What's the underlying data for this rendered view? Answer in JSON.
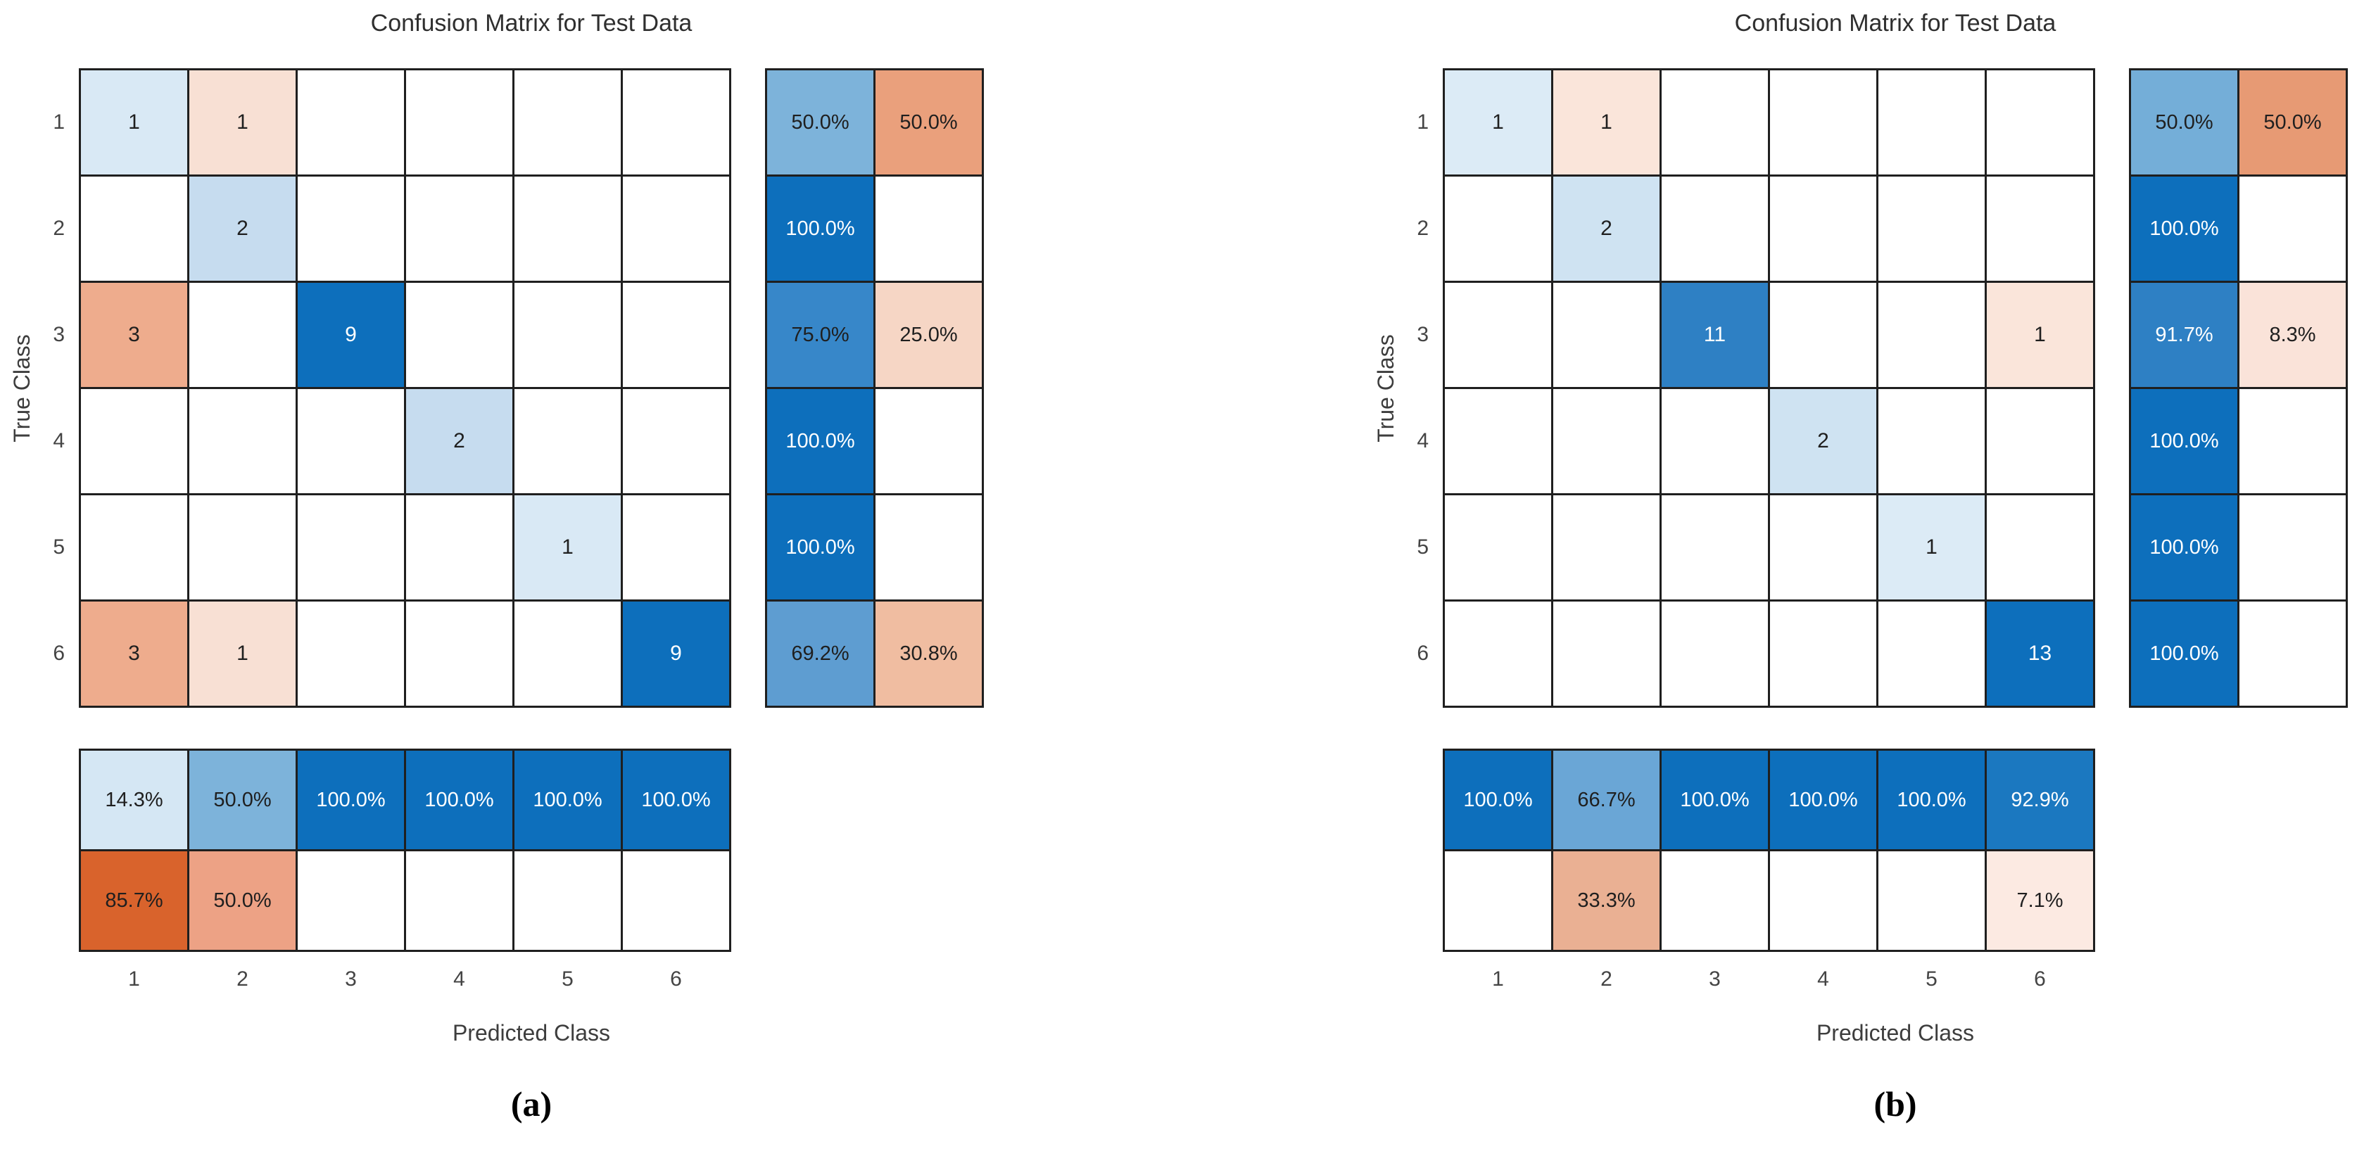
{
  "figure": {
    "background": "#ffffff",
    "grid_line_color": "#1f1f1f"
  },
  "palette": {
    "diag_dark_blue": "#0d6fbc",
    "diag_medium_blue": "#2e80c4",
    "offdiag_strong_orange": "#d9632c",
    "offdiag_salmon": "#eaa07c",
    "blank_cell": "#ffffff"
  },
  "charts": [
    {
      "id": "a",
      "caption": "(a)",
      "title": "Confusion Matrix for Test Data",
      "xlabel": "Predicted Class",
      "ylabel": "True Class",
      "x_ticks": [
        "1",
        "2",
        "3",
        "4",
        "5",
        "6"
      ],
      "y_ticks": [
        "1",
        "2",
        "3",
        "4",
        "5",
        "6"
      ],
      "cells": [
        [
          {
            "v": "1",
            "bg": "#d9e9f5",
            "fg": "#1f1f1f"
          },
          {
            "v": "1",
            "bg": "#f8e0d4",
            "fg": "#1f1f1f"
          },
          {
            "v": "",
            "bg": "#ffffff",
            "fg": "#1f1f1f"
          },
          {
            "v": "",
            "bg": "#ffffff",
            "fg": "#1f1f1f"
          },
          {
            "v": "",
            "bg": "#ffffff",
            "fg": "#1f1f1f"
          },
          {
            "v": "",
            "bg": "#ffffff",
            "fg": "#1f1f1f"
          }
        ],
        [
          {
            "v": "",
            "bg": "#ffffff",
            "fg": "#1f1f1f"
          },
          {
            "v": "2",
            "bg": "#c6dcef",
            "fg": "#1f1f1f"
          },
          {
            "v": "",
            "bg": "#ffffff",
            "fg": "#1f1f1f"
          },
          {
            "v": "",
            "bg": "#ffffff",
            "fg": "#1f1f1f"
          },
          {
            "v": "",
            "bg": "#ffffff",
            "fg": "#1f1f1f"
          },
          {
            "v": "",
            "bg": "#ffffff",
            "fg": "#1f1f1f"
          }
        ],
        [
          {
            "v": "3",
            "bg": "#eeac8d",
            "fg": "#1f1f1f"
          },
          {
            "v": "",
            "bg": "#ffffff",
            "fg": "#1f1f1f"
          },
          {
            "v": "9",
            "bg": "#0d6fbc",
            "fg": "#ffffff"
          },
          {
            "v": "",
            "bg": "#ffffff",
            "fg": "#1f1f1f"
          },
          {
            "v": "",
            "bg": "#ffffff",
            "fg": "#1f1f1f"
          },
          {
            "v": "",
            "bg": "#ffffff",
            "fg": "#1f1f1f"
          }
        ],
        [
          {
            "v": "",
            "bg": "#ffffff",
            "fg": "#1f1f1f"
          },
          {
            "v": "",
            "bg": "#ffffff",
            "fg": "#1f1f1f"
          },
          {
            "v": "",
            "bg": "#ffffff",
            "fg": "#1f1f1f"
          },
          {
            "v": "2",
            "bg": "#c6dcef",
            "fg": "#1f1f1f"
          },
          {
            "v": "",
            "bg": "#ffffff",
            "fg": "#1f1f1f"
          },
          {
            "v": "",
            "bg": "#ffffff",
            "fg": "#1f1f1f"
          }
        ],
        [
          {
            "v": "",
            "bg": "#ffffff",
            "fg": "#1f1f1f"
          },
          {
            "v": "",
            "bg": "#ffffff",
            "fg": "#1f1f1f"
          },
          {
            "v": "",
            "bg": "#ffffff",
            "fg": "#1f1f1f"
          },
          {
            "v": "",
            "bg": "#ffffff",
            "fg": "#1f1f1f"
          },
          {
            "v": "1",
            "bg": "#d9e9f5",
            "fg": "#1f1f1f"
          },
          {
            "v": "",
            "bg": "#ffffff",
            "fg": "#1f1f1f"
          }
        ],
        [
          {
            "v": "3",
            "bg": "#eeac8d",
            "fg": "#1f1f1f"
          },
          {
            "v": "1",
            "bg": "#f8e0d4",
            "fg": "#1f1f1f"
          },
          {
            "v": "",
            "bg": "#ffffff",
            "fg": "#1f1f1f"
          },
          {
            "v": "",
            "bg": "#ffffff",
            "fg": "#1f1f1f"
          },
          {
            "v": "",
            "bg": "#ffffff",
            "fg": "#1f1f1f"
          },
          {
            "v": "9",
            "bg": "#0d6fbc",
            "fg": "#ffffff"
          }
        ]
      ],
      "row_summary": [
        [
          {
            "v": "50.0%",
            "bg": "#7db3da",
            "fg": "#1f1f1f"
          },
          {
            "v": "50.0%",
            "bg": "#eaa07c",
            "fg": "#1f1f1f"
          }
        ],
        [
          {
            "v": "100.0%",
            "bg": "#0d6fbc",
            "fg": "#ffffff"
          },
          {
            "v": "",
            "bg": "#ffffff",
            "fg": "#1f1f1f"
          }
        ],
        [
          {
            "v": "75.0%",
            "bg": "#3787c9",
            "fg": "#1f1f1f"
          },
          {
            "v": "25.0%",
            "bg": "#f6d6c5",
            "fg": "#1f1f1f"
          }
        ],
        [
          {
            "v": "100.0%",
            "bg": "#0d6fbc",
            "fg": "#ffffff"
          },
          {
            "v": "",
            "bg": "#ffffff",
            "fg": "#1f1f1f"
          }
        ],
        [
          {
            "v": "100.0%",
            "bg": "#0d6fbc",
            "fg": "#ffffff"
          },
          {
            "v": "",
            "bg": "#ffffff",
            "fg": "#1f1f1f"
          }
        ],
        [
          {
            "v": "69.2%",
            "bg": "#5e9dd1",
            "fg": "#1f1f1f"
          },
          {
            "v": "30.8%",
            "bg": "#f0bda1",
            "fg": "#1f1f1f"
          }
        ]
      ],
      "col_summary": [
        [
          {
            "v": "14.3%",
            "bg": "#d5e7f4",
            "fg": "#1f1f1f"
          },
          {
            "v": "50.0%",
            "bg": "#7db3da",
            "fg": "#1f1f1f"
          },
          {
            "v": "100.0%",
            "bg": "#0d6fbc",
            "fg": "#ffffff"
          },
          {
            "v": "100.0%",
            "bg": "#0d6fbc",
            "fg": "#ffffff"
          },
          {
            "v": "100.0%",
            "bg": "#0d6fbc",
            "fg": "#ffffff"
          },
          {
            "v": "100.0%",
            "bg": "#0d6fbc",
            "fg": "#ffffff"
          }
        ],
        [
          {
            "v": "85.7%",
            "bg": "#d9632c",
            "fg": "#1f1f1f"
          },
          {
            "v": "50.0%",
            "bg": "#eda285",
            "fg": "#1f1f1f"
          },
          {
            "v": "",
            "bg": "#ffffff",
            "fg": "#1f1f1f"
          },
          {
            "v": "",
            "bg": "#ffffff",
            "fg": "#1f1f1f"
          },
          {
            "v": "",
            "bg": "#ffffff",
            "fg": "#1f1f1f"
          },
          {
            "v": "",
            "bg": "#ffffff",
            "fg": "#1f1f1f"
          }
        ]
      ]
    },
    {
      "id": "b",
      "caption": "(b)",
      "title": "Confusion Matrix for Test Data",
      "xlabel": "Predicted Class",
      "ylabel": "True Class",
      "x_ticks": [
        "1",
        "2",
        "3",
        "4",
        "5",
        "6"
      ],
      "y_ticks": [
        "1",
        "2",
        "3",
        "4",
        "5",
        "6"
      ],
      "cells": [
        [
          {
            "v": "1",
            "bg": "#dcebf6",
            "fg": "#1f1f1f"
          },
          {
            "v": "1",
            "bg": "#fae5da",
            "fg": "#1f1f1f"
          },
          {
            "v": "",
            "bg": "#ffffff",
            "fg": "#1f1f1f"
          },
          {
            "v": "",
            "bg": "#ffffff",
            "fg": "#1f1f1f"
          },
          {
            "v": "",
            "bg": "#ffffff",
            "fg": "#1f1f1f"
          },
          {
            "v": "",
            "bg": "#ffffff",
            "fg": "#1f1f1f"
          }
        ],
        [
          {
            "v": "",
            "bg": "#ffffff",
            "fg": "#1f1f1f"
          },
          {
            "v": "2",
            "bg": "#cfe3f2",
            "fg": "#1f1f1f"
          },
          {
            "v": "",
            "bg": "#ffffff",
            "fg": "#1f1f1f"
          },
          {
            "v": "",
            "bg": "#ffffff",
            "fg": "#1f1f1f"
          },
          {
            "v": "",
            "bg": "#ffffff",
            "fg": "#1f1f1f"
          },
          {
            "v": "",
            "bg": "#ffffff",
            "fg": "#1f1f1f"
          }
        ],
        [
          {
            "v": "",
            "bg": "#ffffff",
            "fg": "#1f1f1f"
          },
          {
            "v": "",
            "bg": "#ffffff",
            "fg": "#1f1f1f"
          },
          {
            "v": "11",
            "bg": "#2e80c4",
            "fg": "#ffffff"
          },
          {
            "v": "",
            "bg": "#ffffff",
            "fg": "#1f1f1f"
          },
          {
            "v": "",
            "bg": "#ffffff",
            "fg": "#1f1f1f"
          },
          {
            "v": "1",
            "bg": "#fae5da",
            "fg": "#1f1f1f"
          }
        ],
        [
          {
            "v": "",
            "bg": "#ffffff",
            "fg": "#1f1f1f"
          },
          {
            "v": "",
            "bg": "#ffffff",
            "fg": "#1f1f1f"
          },
          {
            "v": "",
            "bg": "#ffffff",
            "fg": "#1f1f1f"
          },
          {
            "v": "2",
            "bg": "#cfe3f2",
            "fg": "#1f1f1f"
          },
          {
            "v": "",
            "bg": "#ffffff",
            "fg": "#1f1f1f"
          },
          {
            "v": "",
            "bg": "#ffffff",
            "fg": "#1f1f1f"
          }
        ],
        [
          {
            "v": "",
            "bg": "#ffffff",
            "fg": "#1f1f1f"
          },
          {
            "v": "",
            "bg": "#ffffff",
            "fg": "#1f1f1f"
          },
          {
            "v": "",
            "bg": "#ffffff",
            "fg": "#1f1f1f"
          },
          {
            "v": "",
            "bg": "#ffffff",
            "fg": "#1f1f1f"
          },
          {
            "v": "1",
            "bg": "#dcebf6",
            "fg": "#1f1f1f"
          },
          {
            "v": "",
            "bg": "#ffffff",
            "fg": "#1f1f1f"
          }
        ],
        [
          {
            "v": "",
            "bg": "#ffffff",
            "fg": "#1f1f1f"
          },
          {
            "v": "",
            "bg": "#ffffff",
            "fg": "#1f1f1f"
          },
          {
            "v": "",
            "bg": "#ffffff",
            "fg": "#1f1f1f"
          },
          {
            "v": "",
            "bg": "#ffffff",
            "fg": "#1f1f1f"
          },
          {
            "v": "",
            "bg": "#ffffff",
            "fg": "#1f1f1f"
          },
          {
            "v": "13",
            "bg": "#0d6fbc",
            "fg": "#ffffff"
          }
        ]
      ],
      "row_summary": [
        [
          {
            "v": "50.0%",
            "bg": "#74aed8",
            "fg": "#1f1f1f"
          },
          {
            "v": "50.0%",
            "bg": "#e79a74",
            "fg": "#1f1f1f"
          }
        ],
        [
          {
            "v": "100.0%",
            "bg": "#0d6fbc",
            "fg": "#ffffff"
          },
          {
            "v": "",
            "bg": "#ffffff",
            "fg": "#1f1f1f"
          }
        ],
        [
          {
            "v": "91.7%",
            "bg": "#2e80c4",
            "fg": "#ffffff"
          },
          {
            "v": "8.3%",
            "bg": "#fae3d9",
            "fg": "#1f1f1f"
          }
        ],
        [
          {
            "v": "100.0%",
            "bg": "#0d6fbc",
            "fg": "#ffffff"
          },
          {
            "v": "",
            "bg": "#ffffff",
            "fg": "#1f1f1f"
          }
        ],
        [
          {
            "v": "100.0%",
            "bg": "#0d6fbc",
            "fg": "#ffffff"
          },
          {
            "v": "",
            "bg": "#ffffff",
            "fg": "#1f1f1f"
          }
        ],
        [
          {
            "v": "100.0%",
            "bg": "#0d6fbc",
            "fg": "#ffffff"
          },
          {
            "v": "",
            "bg": "#ffffff",
            "fg": "#1f1f1f"
          }
        ]
      ],
      "col_summary": [
        [
          {
            "v": "100.0%",
            "bg": "#0d6fbc",
            "fg": "#ffffff"
          },
          {
            "v": "66.7%",
            "bg": "#6aa6d6",
            "fg": "#1f1f1f"
          },
          {
            "v": "100.0%",
            "bg": "#0d6fbc",
            "fg": "#ffffff"
          },
          {
            "v": "100.0%",
            "bg": "#0d6fbc",
            "fg": "#ffffff"
          },
          {
            "v": "100.0%",
            "bg": "#0d6fbc",
            "fg": "#ffffff"
          },
          {
            "v": "92.9%",
            "bg": "#1b78c0",
            "fg": "#ffffff"
          }
        ],
        [
          {
            "v": "",
            "bg": "#ffffff",
            "fg": "#1f1f1f"
          },
          {
            "v": "33.3%",
            "bg": "#eab093",
            "fg": "#1f1f1f"
          },
          {
            "v": "",
            "bg": "#ffffff",
            "fg": "#1f1f1f"
          },
          {
            "v": "",
            "bg": "#ffffff",
            "fg": "#1f1f1f"
          },
          {
            "v": "",
            "bg": "#ffffff",
            "fg": "#1f1f1f"
          },
          {
            "v": "7.1%",
            "bg": "#fceae2",
            "fg": "#1f1f1f"
          }
        ]
      ]
    }
  ],
  "chart_data": [
    {
      "type": "heatmap",
      "subtype": "confusion_matrix",
      "subfigure": "(a)",
      "title": "Confusion Matrix for Test Data",
      "xlabel": "Predicted Class",
      "ylabel": "True Class",
      "classes": [
        1,
        2,
        3,
        4,
        5,
        6
      ],
      "counts": [
        [
          1,
          1,
          0,
          0,
          0,
          0
        ],
        [
          0,
          2,
          0,
          0,
          0,
          0
        ],
        [
          3,
          0,
          9,
          0,
          0,
          0
        ],
        [
          0,
          0,
          0,
          2,
          0,
          0
        ],
        [
          0,
          0,
          0,
          0,
          1,
          0
        ],
        [
          3,
          1,
          0,
          0,
          0,
          9
        ]
      ],
      "row_summary_true_positive_rate_pct": [
        50.0,
        100.0,
        75.0,
        100.0,
        100.0,
        69.2
      ],
      "row_summary_false_negative_rate_pct": [
        50.0,
        null,
        25.0,
        null,
        null,
        30.8
      ],
      "col_summary_positive_predictive_value_pct": [
        14.3,
        50.0,
        100.0,
        100.0,
        100.0,
        100.0
      ],
      "col_summary_false_discovery_rate_pct": [
        85.7,
        50.0,
        null,
        null,
        null,
        null
      ]
    },
    {
      "type": "heatmap",
      "subtype": "confusion_matrix",
      "subfigure": "(b)",
      "title": "Confusion Matrix for Test Data",
      "xlabel": "Predicted Class",
      "ylabel": "True Class",
      "classes": [
        1,
        2,
        3,
        4,
        5,
        6
      ],
      "counts": [
        [
          1,
          1,
          0,
          0,
          0,
          0
        ],
        [
          0,
          2,
          0,
          0,
          0,
          0
        ],
        [
          0,
          0,
          11,
          0,
          0,
          1
        ],
        [
          0,
          0,
          0,
          2,
          0,
          0
        ],
        [
          0,
          0,
          0,
          0,
          1,
          0
        ],
        [
          0,
          0,
          0,
          0,
          0,
          13
        ]
      ],
      "row_summary_true_positive_rate_pct": [
        50.0,
        100.0,
        91.7,
        100.0,
        100.0,
        100.0
      ],
      "row_summary_false_negative_rate_pct": [
        50.0,
        null,
        8.3,
        null,
        null,
        null
      ],
      "col_summary_positive_predictive_value_pct": [
        100.0,
        66.7,
        100.0,
        100.0,
        100.0,
        92.9
      ],
      "col_summary_false_discovery_rate_pct": [
        null,
        33.3,
        null,
        null,
        null,
        7.1
      ]
    }
  ]
}
